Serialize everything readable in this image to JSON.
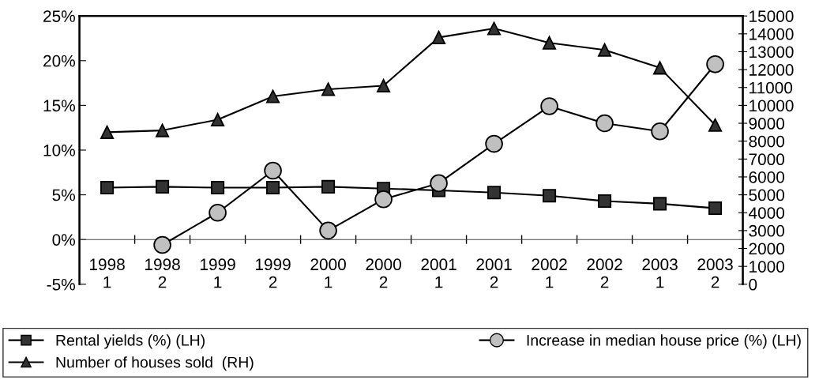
{
  "chart_data": {
    "type": "line",
    "categories": [
      "1998\n1",
      "1998\n2",
      "1999\n1",
      "1999\n2",
      "2000\n1",
      "2000\n2",
      "2001\n1",
      "2001\n2",
      "2002\n1",
      "2002\n2",
      "2003\n1",
      "2003\n2"
    ],
    "series": [
      {
        "name": "Rental yields (%) (LH)",
        "color": "#333333",
        "marker": "square",
        "values": [
          5.8,
          5.9,
          5.8,
          5.8,
          5.9,
          5.7,
          5.5,
          5.25,
          4.9,
          4.3,
          4.0,
          3.5
        ]
      },
      {
        "name": "Increase in median house price (%) (LH)",
        "color": "#c0c0c0",
        "marker": "circle",
        "values": [
          null,
          -0.6,
          3.0,
          7.7,
          1.0,
          4.5,
          6.3,
          10.7,
          14.9,
          13.0,
          12.1,
          19.6
        ]
      },
      {
        "name": "Number of houses sold  (RH)",
        "color": "#333333",
        "marker": "triangle",
        "axis": "y2",
        "values": [
          8500,
          8600,
          9200,
          10500,
          10900,
          11100,
          13800,
          14300,
          13500,
          13100,
          12100,
          8900
        ]
      }
    ],
    "ylim": [
      -5,
      25
    ],
    "yticks": [
      {
        "value": -5,
        "label": "-5%"
      },
      {
        "value": 0,
        "label": "0%"
      },
      {
        "value": 5,
        "label": "5%"
      },
      {
        "value": 10,
        "label": "10%"
      },
      {
        "value": 15,
        "label": "15%"
      },
      {
        "value": 20,
        "label": "20%"
      },
      {
        "value": 25,
        "label": "25%"
      }
    ],
    "y2lim": [
      0,
      15000
    ],
    "y2ticks": [
      0,
      1000,
      2000,
      3000,
      4000,
      5000,
      6000,
      7000,
      8000,
      9000,
      10000,
      11000,
      12000,
      13000,
      14000,
      15000
    ],
    "grid": false,
    "legend": "bottom",
    "line_style": "solid"
  }
}
